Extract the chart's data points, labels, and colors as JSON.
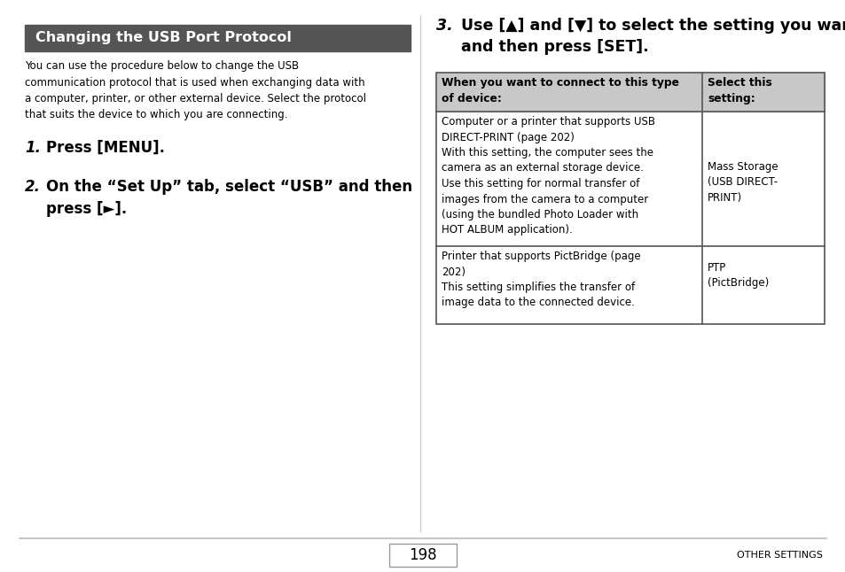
{
  "bg_color": "#ffffff",
  "page_number": "198",
  "footer_text": "OTHER SETTINGS",
  "divider_color": "#bbbbbb",
  "left_col": {
    "header_bg": "#555555",
    "header_text_color": "#ffffff",
    "header_text": "Changing the USB Port Protocol",
    "body_text": "You can use the procedure below to change the USB\ncommunication protocol that is used when exchanging data with\na computer, printer, or other external device. Select the protocol\nthat suits the device to which you are connecting.",
    "step1_num": "1.",
    "step1_text": "Press [MENU].",
    "step2_num": "2.",
    "step2_text": "On the “Set Up” tab, select “USB” and then\npress [►]."
  },
  "right_col": {
    "step3_num": "3.",
    "step3_text": "Use [▲] and [▼] to select the setting you want\nand then press [SET].",
    "table_header_bg": "#c8c8c8",
    "table_header_col1": "When you want to connect to this type\nof device:",
    "table_header_col2": "Select this\nsetting:",
    "table_border_color": "#555555",
    "row1_col1": "Computer or a printer that supports USB\nDIRECT-PRINT (page 202)\nWith this setting, the computer sees the\ncamera as an external storage device.\nUse this setting for normal transfer of\nimages from the camera to a computer\n(using the bundled Photo Loader with\nHOT ALBUM application).",
    "row1_col2": "Mass Storage\n(USB DIRECT-\nPRINT)",
    "row2_col1": "Printer that supports PictBridge (page\n202)\nThis setting simplifies the transfer of\nimage data to the connected device.",
    "row2_col2": "PTP\n(PictBridge)"
  }
}
